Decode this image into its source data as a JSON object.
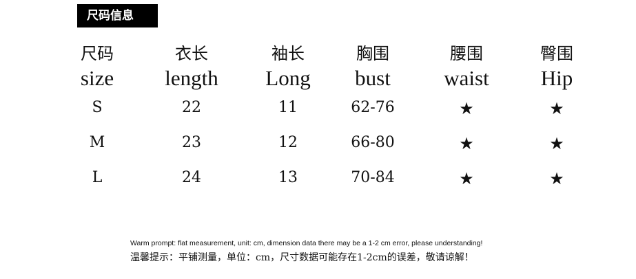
{
  "badge": "尺码信息",
  "columns": [
    {
      "zh": "尺码",
      "en": "size"
    },
    {
      "zh": "衣长",
      "en": "length"
    },
    {
      "zh": "袖长",
      "en": "Long"
    },
    {
      "zh": "胸围",
      "en": "bust"
    },
    {
      "zh": "腰围",
      "en": "waist"
    },
    {
      "zh": "臀围",
      "en": "Hip"
    }
  ],
  "rows": [
    [
      "S",
      "22",
      "11",
      "62-76",
      "★",
      "★"
    ],
    [
      "M",
      "23",
      "12",
      "66-80",
      "★",
      "★"
    ],
    [
      "L",
      "24",
      "13",
      "70-84",
      "★",
      "★"
    ]
  ],
  "note_en": "Warm prompt: flat measurement, unit: cm, dimension data there may be a 1-2 cm error, please understanding!",
  "note_zh": "温馨提示：平铺测量，单位：cm，尺寸数据可能存在1-2cm的误差，敬请谅解！"
}
